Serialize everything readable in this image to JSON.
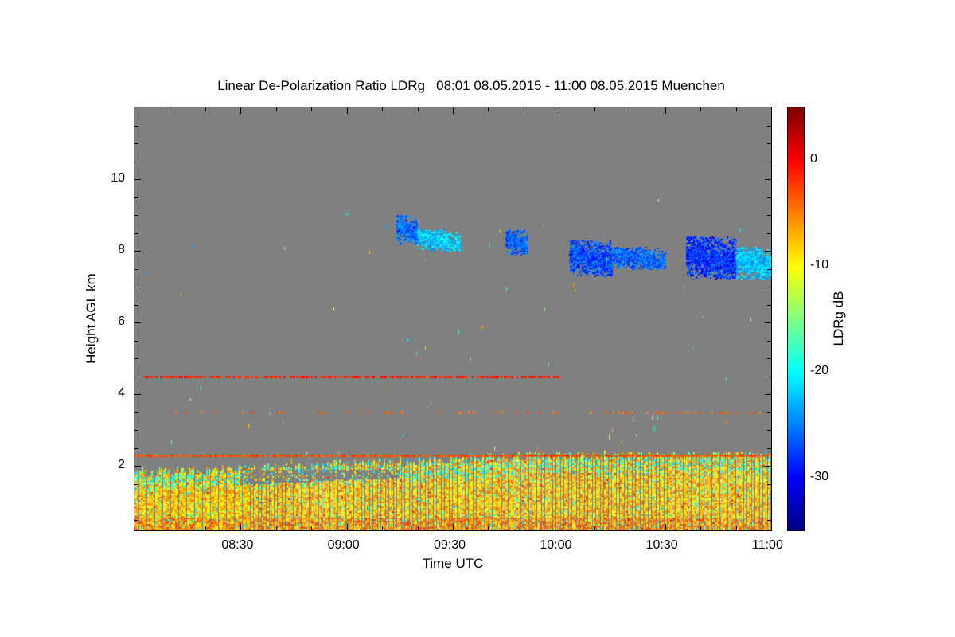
{
  "chart_data": {
    "type": "heatmap",
    "title": "Linear De-Polarization Ratio LDRg   08:01 08.05.2015 - 11:00 08.05.2015 Muenchen",
    "xlabel": "Time UTC",
    "ylabel": "Height AGL km",
    "colorbar_label": "LDRg dB",
    "colormap": "jet",
    "missing_color": "#808080",
    "xlim_minutes_utc": [
      480,
      660
    ],
    "ylim_km": [
      0.2,
      12
    ],
    "clim_db": [
      -35,
      5
    ],
    "x_ticks": [
      {
        "v": 510,
        "label": "08:30"
      },
      {
        "v": 540,
        "label": "09:00"
      },
      {
        "v": 570,
        "label": "09:30"
      },
      {
        "v": 600,
        "label": "10:00"
      },
      {
        "v": 630,
        "label": "10:30"
      },
      {
        "v": 660,
        "label": "11:00"
      }
    ],
    "y_ticks": [
      {
        "v": 2,
        "label": "2"
      },
      {
        "v": 4,
        "label": "4"
      },
      {
        "v": 6,
        "label": "6"
      },
      {
        "v": 8,
        "label": "8"
      },
      {
        "v": 10,
        "label": "10"
      }
    ],
    "cbar_ticks": [
      {
        "v": 0,
        "label": "0"
      },
      {
        "v": -10,
        "label": "-10"
      },
      {
        "v": -20,
        "label": "-20"
      },
      {
        "v": -30,
        "label": "-30"
      }
    ],
    "features": {
      "boundary_layer": {
        "base_km": 0.2,
        "top_km_start": 1.8,
        "top_km_end": 2.3,
        "ldr_db_mean": -8,
        "ldr_db_spread": 4
      },
      "boundary_layer_gap": {
        "t_start": 510,
        "t_end": 555,
        "bottom_km": 1.5,
        "top_km": 1.9
      },
      "layers": [
        {
          "height_km": 2.3,
          "t_start": 480,
          "t_end": 660,
          "ldr_db": -3,
          "density": 0.7
        },
        {
          "height_km": 4.5,
          "t_start": 482,
          "t_end": 600,
          "ldr_db": -1,
          "density": 0.55
        },
        {
          "height_km": 3.5,
          "t_start": 490,
          "t_end": 660,
          "ldr_db": -4,
          "density": 0.12
        }
      ],
      "cirrus": [
        {
          "t_start": 554,
          "t_end": 560,
          "bottom_km": 8.2,
          "top_km": 9.0,
          "ldr_db": -26
        },
        {
          "t_start": 560,
          "t_end": 572,
          "bottom_km": 8.0,
          "top_km": 8.6,
          "ldr_db": -22
        },
        {
          "t_start": 585,
          "t_end": 591,
          "bottom_km": 7.9,
          "top_km": 8.6,
          "ldr_db": -26
        },
        {
          "t_start": 603,
          "t_end": 615,
          "bottom_km": 7.3,
          "top_km": 8.3,
          "ldr_db": -27
        },
        {
          "t_start": 615,
          "t_end": 630,
          "bottom_km": 7.5,
          "top_km": 8.1,
          "ldr_db": -26
        },
        {
          "t_start": 636,
          "t_end": 650,
          "bottom_km": 7.2,
          "top_km": 8.4,
          "ldr_db": -28
        },
        {
          "t_start": 650,
          "t_end": 660,
          "bottom_km": 7.2,
          "top_km": 8.1,
          "ldr_db": -22
        }
      ]
    }
  }
}
